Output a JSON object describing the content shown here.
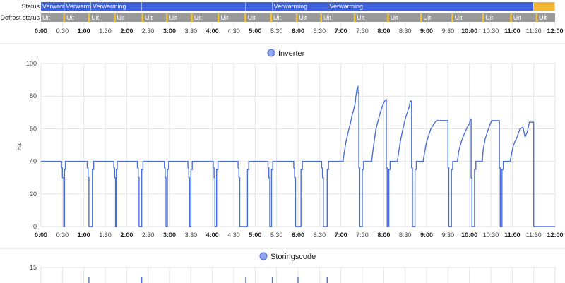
{
  "colors": {
    "status_on": "#3f62d6",
    "status_idle": "#f2b632",
    "defrost_off": "#9a9a9a",
    "defrost_on": "#f2c230",
    "line": "#4a6fd8",
    "legend_fill": "#8fa6ec",
    "grid": "#e3e3e3",
    "divider": "#dddddd"
  },
  "timeline": {
    "status_label": "Status",
    "defrost_label": "Defrost status",
    "status_segments": [
      {
        "start": 0.0,
        "end": 0.55,
        "label": "Verwarming",
        "state": "on"
      },
      {
        "start": 0.55,
        "end": 1.17,
        "label": "Verwarming",
        "state": "on"
      },
      {
        "start": 1.17,
        "end": 2.35,
        "label": "Verwarming",
        "state": "on"
      },
      {
        "start": 2.35,
        "end": 4.78,
        "label": "",
        "state": "on"
      },
      {
        "start": 4.78,
        "end": 5.4,
        "label": "",
        "state": "on"
      },
      {
        "start": 5.4,
        "end": 6.7,
        "label": "Verwarming",
        "state": "on"
      },
      {
        "start": 6.7,
        "end": 11.5,
        "label": "Verwarming",
        "state": "on"
      },
      {
        "start": 11.5,
        "end": 12.0,
        "label": "",
        "state": "idle"
      }
    ],
    "defrost_segments": [
      {
        "start": 0.0,
        "end": 0.52,
        "label": "Uit"
      },
      {
        "start": 0.56,
        "end": 1.1,
        "label": "Uit"
      },
      {
        "start": 1.14,
        "end": 1.7,
        "label": "Uit"
      },
      {
        "start": 1.74,
        "end": 2.35,
        "label": "Uit"
      },
      {
        "start": 2.39,
        "end": 2.92,
        "label": "Uit"
      },
      {
        "start": 2.96,
        "end": 3.5,
        "label": "Uit"
      },
      {
        "start": 3.54,
        "end": 4.12,
        "label": "Uit"
      },
      {
        "start": 4.16,
        "end": 4.75,
        "label": "Uit"
      },
      {
        "start": 4.79,
        "end": 5.35,
        "label": "Uit"
      },
      {
        "start": 5.39,
        "end": 5.95,
        "label": "Uit"
      },
      {
        "start": 5.99,
        "end": 6.52,
        "label": "Uit"
      },
      {
        "start": 6.56,
        "end": 7.3,
        "label": "Uit"
      },
      {
        "start": 7.34,
        "end": 8.08,
        "label": "Uit"
      },
      {
        "start": 8.12,
        "end": 8.85,
        "label": "Uit"
      },
      {
        "start": 8.89,
        "end": 9.58,
        "label": "Uit"
      },
      {
        "start": 9.62,
        "end": 10.3,
        "label": "Uit"
      },
      {
        "start": 10.34,
        "end": 10.95,
        "label": "Uit"
      },
      {
        "start": 10.99,
        "end": 11.55,
        "label": "Uit"
      },
      {
        "start": 11.59,
        "end": 12.0,
        "label": "Uit"
      }
    ]
  },
  "chart_data": [
    {
      "type": "line",
      "title": "Inverter",
      "legend": "Inverter",
      "ylabel": "Hz",
      "xlabel": "",
      "ylim": [
        0,
        100
      ],
      "yticks": [
        0,
        20,
        40,
        60,
        80,
        100
      ],
      "xlim": [
        0,
        12
      ],
      "xticks": [
        "0:00",
        "0:30",
        "1:00",
        "1:30",
        "2:00",
        "2:30",
        "3:00",
        "3:30",
        "4:00",
        "4:30",
        "5:00",
        "5:30",
        "6:00",
        "6:30",
        "7:00",
        "7:30",
        "8:00",
        "8:30",
        "9:00",
        "9:30",
        "10:00",
        "10:30",
        "11:00",
        "11:30",
        "12:00"
      ],
      "grid": true,
      "series": [
        {
          "name": "Inverter",
          "points": [
            [
              0,
              40
            ],
            [
              0.48,
              40
            ],
            [
              0.48,
              36
            ],
            [
              0.5,
              36
            ],
            [
              0.5,
              30
            ],
            [
              0.53,
              30
            ],
            [
              0.53,
              0
            ],
            [
              0.55,
              0
            ],
            [
              0.55,
              35
            ],
            [
              0.57,
              35
            ],
            [
              0.57,
              40
            ],
            [
              1.08,
              40
            ],
            [
              1.08,
              36
            ],
            [
              1.1,
              36
            ],
            [
              1.1,
              30
            ],
            [
              1.12,
              30
            ],
            [
              1.12,
              0
            ],
            [
              1.2,
              0
            ],
            [
              1.2,
              35
            ],
            [
              1.23,
              35
            ],
            [
              1.23,
              40
            ],
            [
              1.7,
              40
            ],
            [
              1.7,
              36
            ],
            [
              1.72,
              36
            ],
            [
              1.72,
              30
            ],
            [
              1.74,
              30
            ],
            [
              1.74,
              0
            ],
            [
              1.76,
              0
            ],
            [
              1.76,
              35
            ],
            [
              1.78,
              35
            ],
            [
              1.78,
              40
            ],
            [
              2.25,
              40
            ],
            [
              2.25,
              36
            ],
            [
              2.27,
              36
            ],
            [
              2.27,
              30
            ],
            [
              2.29,
              30
            ],
            [
              2.29,
              0
            ],
            [
              2.35,
              0
            ],
            [
              2.35,
              35
            ],
            [
              2.38,
              35
            ],
            [
              2.38,
              40
            ],
            [
              2.88,
              40
            ],
            [
              2.88,
              36
            ],
            [
              2.9,
              36
            ],
            [
              2.9,
              30
            ],
            [
              2.92,
              30
            ],
            [
              2.92,
              0
            ],
            [
              2.95,
              0
            ],
            [
              2.95,
              35
            ],
            [
              2.98,
              35
            ],
            [
              2.98,
              40
            ],
            [
              3.43,
              40
            ],
            [
              3.43,
              36
            ],
            [
              3.45,
              36
            ],
            [
              3.45,
              30
            ],
            [
              3.47,
              30
            ],
            [
              3.47,
              0
            ],
            [
              3.5,
              0
            ],
            [
              3.5,
              35
            ],
            [
              3.53,
              35
            ],
            [
              3.53,
              40
            ],
            [
              4.02,
              40
            ],
            [
              4.02,
              36
            ],
            [
              4.04,
              36
            ],
            [
              4.04,
              30
            ],
            [
              4.06,
              30
            ],
            [
              4.06,
              0
            ],
            [
              4.1,
              0
            ],
            [
              4.1,
              35
            ],
            [
              4.13,
              35
            ],
            [
              4.13,
              40
            ],
            [
              4.6,
              40
            ],
            [
              4.6,
              36
            ],
            [
              4.62,
              36
            ],
            [
              4.62,
              30
            ],
            [
              4.64,
              30
            ],
            [
              4.64,
              0
            ],
            [
              4.82,
              0
            ],
            [
              4.82,
              35
            ],
            [
              4.85,
              35
            ],
            [
              4.85,
              40
            ],
            [
              5.3,
              40
            ],
            [
              5.3,
              36
            ],
            [
              5.32,
              36
            ],
            [
              5.32,
              30
            ],
            [
              5.34,
              30
            ],
            [
              5.34,
              0
            ],
            [
              5.38,
              0
            ],
            [
              5.38,
              35
            ],
            [
              5.41,
              35
            ],
            [
              5.41,
              40
            ],
            [
              5.9,
              40
            ],
            [
              5.9,
              36
            ],
            [
              5.92,
              36
            ],
            [
              5.92,
              30
            ],
            [
              5.94,
              30
            ],
            [
              5.94,
              0
            ],
            [
              6.07,
              0
            ],
            [
              6.07,
              35
            ],
            [
              6.1,
              35
            ],
            [
              6.1,
              40
            ],
            [
              6.55,
              40
            ],
            [
              6.55,
              36
            ],
            [
              6.57,
              36
            ],
            [
              6.57,
              30
            ],
            [
              6.59,
              30
            ],
            [
              6.59,
              0
            ],
            [
              6.68,
              0
            ],
            [
              6.68,
              35
            ],
            [
              6.71,
              35
            ],
            [
              6.71,
              40
            ],
            [
              7.05,
              40
            ],
            [
              7.07,
              44
            ],
            [
              7.12,
              52
            ],
            [
              7.17,
              58
            ],
            [
              7.22,
              63
            ],
            [
              7.26,
              68
            ],
            [
              7.3,
              72
            ],
            [
              7.33,
              75
            ],
            [
              7.35,
              80
            ],
            [
              7.38,
              85
            ],
            [
              7.4,
              86
            ],
            [
              7.4,
              82
            ],
            [
              7.42,
              82
            ],
            [
              7.42,
              36
            ],
            [
              7.44,
              36
            ],
            [
              7.44,
              0
            ],
            [
              7.5,
              0
            ],
            [
              7.5,
              35
            ],
            [
              7.53,
              35
            ],
            [
              7.53,
              40
            ],
            [
              7.72,
              40
            ],
            [
              7.74,
              45
            ],
            [
              7.78,
              53
            ],
            [
              7.82,
              60
            ],
            [
              7.87,
              65
            ],
            [
              7.92,
              70
            ],
            [
              7.97,
              74
            ],
            [
              8.02,
              77
            ],
            [
              8.06,
              78
            ],
            [
              8.06,
              36
            ],
            [
              8.08,
              36
            ],
            [
              8.08,
              0
            ],
            [
              8.12,
              0
            ],
            [
              8.12,
              35
            ],
            [
              8.15,
              35
            ],
            [
              8.15,
              40
            ],
            [
              8.32,
              40
            ],
            [
              8.35,
              46
            ],
            [
              8.4,
              54
            ],
            [
              8.45,
              60
            ],
            [
              8.5,
              66
            ],
            [
              8.55,
              70
            ],
            [
              8.6,
              74
            ],
            [
              8.62,
              77
            ],
            [
              8.65,
              77
            ],
            [
              8.65,
              36
            ],
            [
              8.67,
              36
            ],
            [
              8.67,
              0
            ],
            [
              8.73,
              0
            ],
            [
              8.73,
              35
            ],
            [
              8.76,
              35
            ],
            [
              8.76,
              40
            ],
            [
              8.92,
              40
            ],
            [
              8.95,
              45
            ],
            [
              9.0,
              52
            ],
            [
              9.05,
              56
            ],
            [
              9.1,
              60
            ],
            [
              9.15,
              62
            ],
            [
              9.2,
              64
            ],
            [
              9.25,
              65
            ],
            [
              9.5,
              65
            ],
            [
              9.5,
              36
            ],
            [
              9.52,
              36
            ],
            [
              9.52,
              0
            ],
            [
              9.58,
              0
            ],
            [
              9.58,
              35
            ],
            [
              9.61,
              35
            ],
            [
              9.61,
              40
            ],
            [
              9.72,
              40
            ],
            [
              9.75,
              46
            ],
            [
              9.8,
              51
            ],
            [
              9.85,
              55
            ],
            [
              9.9,
              58
            ],
            [
              9.95,
              61
            ],
            [
              10.0,
              63
            ],
            [
              10.02,
              66
            ],
            [
              10.04,
              66
            ],
            [
              10.04,
              30
            ],
            [
              10.06,
              30
            ],
            [
              10.06,
              0
            ],
            [
              10.12,
              0
            ],
            [
              10.12,
              35
            ],
            [
              10.15,
              35
            ],
            [
              10.15,
              40
            ],
            [
              10.3,
              40
            ],
            [
              10.32,
              47
            ],
            [
              10.37,
              54
            ],
            [
              10.42,
              58
            ],
            [
              10.47,
              62
            ],
            [
              10.52,
              65
            ],
            [
              10.7,
              65
            ],
            [
              10.7,
              36
            ],
            [
              10.72,
              36
            ],
            [
              10.72,
              0
            ],
            [
              10.76,
              0
            ],
            [
              10.76,
              35
            ],
            [
              10.79,
              35
            ],
            [
              10.79,
              40
            ],
            [
              10.95,
              40
            ],
            [
              10.98,
              44
            ],
            [
              11.02,
              49
            ],
            [
              11.06,
              52
            ],
            [
              11.1,
              54
            ],
            [
              11.14,
              57
            ],
            [
              11.18,
              60
            ],
            [
              11.25,
              61
            ],
            [
              11.3,
              55
            ],
            [
              11.35,
              58
            ],
            [
              11.4,
              64
            ],
            [
              11.5,
              64
            ],
            [
              11.5,
              0
            ],
            [
              11.55,
              0
            ],
            [
              11.55,
              0
            ],
            [
              12.0,
              0
            ]
          ]
        }
      ]
    },
    {
      "type": "line",
      "title": "Storingscode",
      "legend": "Storingscode",
      "ylim": [
        0,
        15
      ],
      "yticks": [
        15
      ],
      "xlim": [
        0,
        12
      ],
      "grid": true,
      "series": [
        {
          "name": "Storingscode",
          "spikes": [
            1.12,
            2.35,
            4.78,
            5.4,
            6.0,
            6.68
          ]
        }
      ]
    }
  ]
}
